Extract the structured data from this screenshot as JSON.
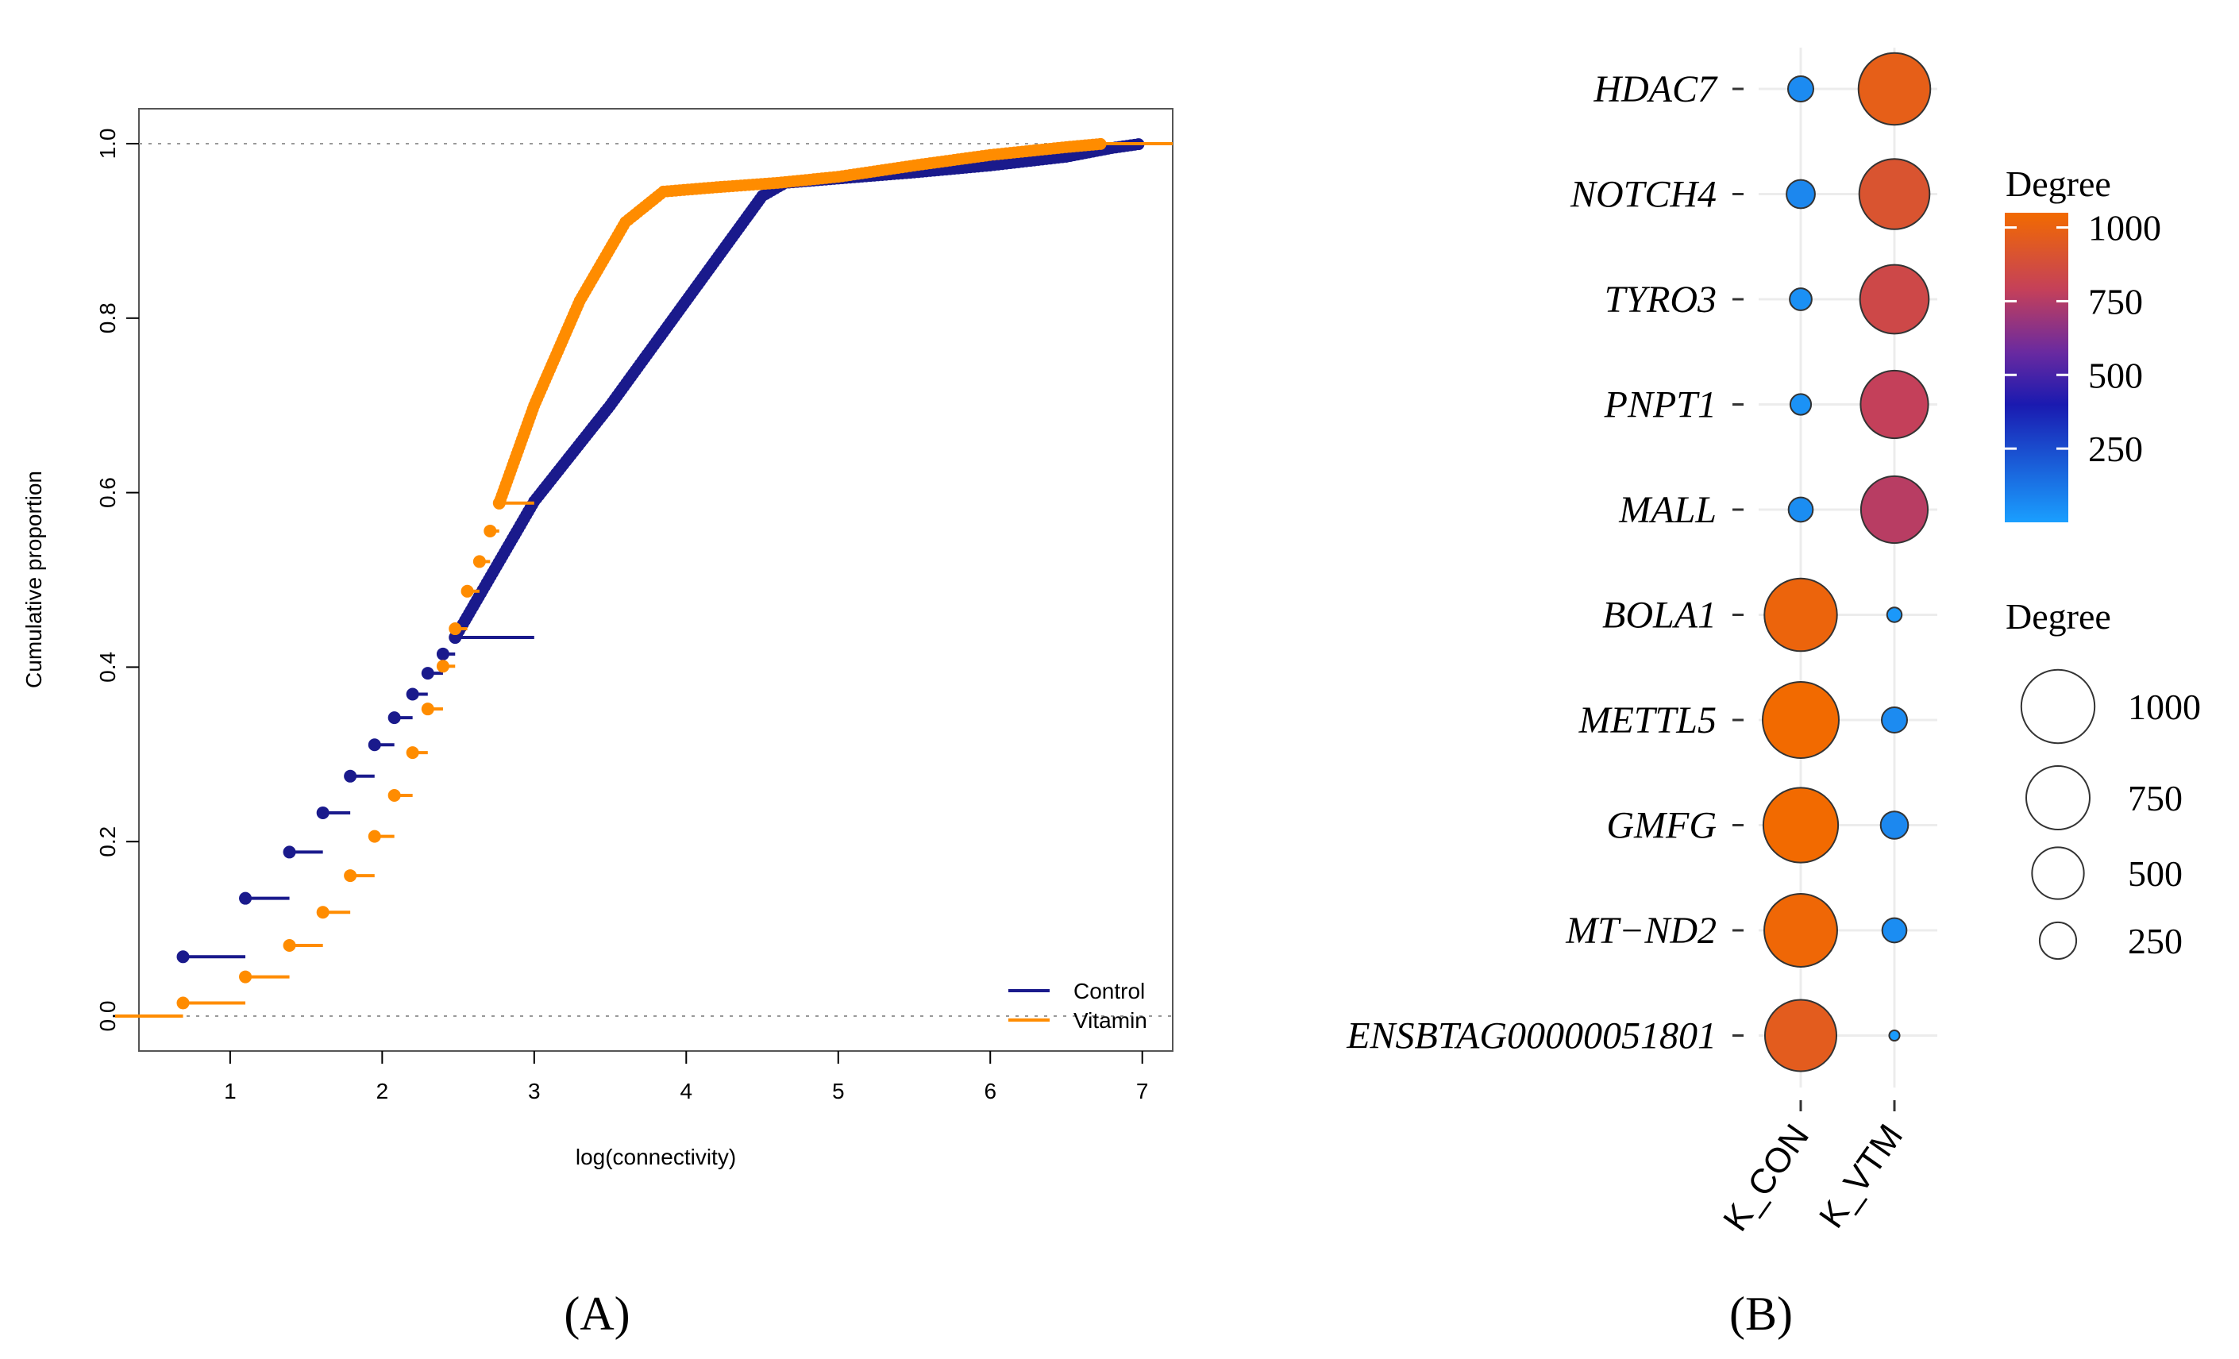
{
  "chart_data": [
    {
      "panel": "A",
      "type": "scatter",
      "xlabel": "log(connectivity)",
      "ylabel": "Cumulative proportion",
      "xlim": [
        0.4,
        7.2
      ],
      "ylim": [
        -0.04,
        1.04
      ],
      "x_ticks": [
        1,
        2,
        3,
        4,
        5,
        6,
        7
      ],
      "y_ticks": [
        0.0,
        0.2,
        0.4,
        0.6,
        0.8,
        1.0
      ],
      "y_tick_labels": [
        "0.0",
        "0.2",
        "0.4",
        "0.6",
        "0.8",
        "1.0"
      ],
      "reference_lines_y": [
        0.0,
        1.0
      ],
      "legend": {
        "position": "bottom-right",
        "entries": [
          "Control",
          "Vitamin"
        ]
      },
      "series": [
        {
          "name": "Control",
          "color": "#1a1a8c",
          "step_points": [
            {
              "x": 0.69,
              "y": 0.068
            },
            {
              "x": 1.1,
              "y": 0.135
            },
            {
              "x": 1.39,
              "y": 0.188
            },
            {
              "x": 1.61,
              "y": 0.233
            },
            {
              "x": 1.79,
              "y": 0.275
            },
            {
              "x": 1.95,
              "y": 0.311
            },
            {
              "x": 2.08,
              "y": 0.342
            },
            {
              "x": 2.2,
              "y": 0.369
            },
            {
              "x": 2.3,
              "y": 0.393
            },
            {
              "x": 2.4,
              "y": 0.415
            },
            {
              "x": 2.48,
              "y": 0.434
            }
          ],
          "curve": [
            {
              "x": 2.48,
              "y": 0.434
            },
            {
              "x": 3.0,
              "y": 0.59
            },
            {
              "x": 3.5,
              "y": 0.7
            },
            {
              "x": 4.0,
              "y": 0.82
            },
            {
              "x": 4.5,
              "y": 0.94
            },
            {
              "x": 4.65,
              "y": 0.955
            },
            {
              "x": 5.0,
              "y": 0.96
            },
            {
              "x": 5.5,
              "y": 0.967
            },
            {
              "x": 6.0,
              "y": 0.975
            },
            {
              "x": 6.5,
              "y": 0.985
            },
            {
              "x": 6.8,
              "y": 0.995
            },
            {
              "x": 7.0,
              "y": 1.0
            }
          ]
        },
        {
          "name": "Vitamin",
          "color": "#ff8c00",
          "step_points": [
            {
              "x": 0.69,
              "y": 0.015
            },
            {
              "x": 1.1,
              "y": 0.045
            },
            {
              "x": 1.39,
              "y": 0.081
            },
            {
              "x": 1.61,
              "y": 0.119
            },
            {
              "x": 1.79,
              "y": 0.161
            },
            {
              "x": 1.95,
              "y": 0.206
            },
            {
              "x": 2.08,
              "y": 0.253
            },
            {
              "x": 2.2,
              "y": 0.302
            },
            {
              "x": 2.3,
              "y": 0.352
            },
            {
              "x": 2.4,
              "y": 0.401
            },
            {
              "x": 2.48,
              "y": 0.444
            },
            {
              "x": 2.56,
              "y": 0.487
            },
            {
              "x": 2.64,
              "y": 0.521
            },
            {
              "x": 2.71,
              "y": 0.556
            },
            {
              "x": 2.77,
              "y": 0.588
            }
          ],
          "curve": [
            {
              "x": 2.77,
              "y": 0.588
            },
            {
              "x": 3.0,
              "y": 0.7
            },
            {
              "x": 3.3,
              "y": 0.82
            },
            {
              "x": 3.6,
              "y": 0.91
            },
            {
              "x": 3.85,
              "y": 0.945
            },
            {
              "x": 4.2,
              "y": 0.95
            },
            {
              "x": 4.6,
              "y": 0.955
            },
            {
              "x": 5.0,
              "y": 0.962
            },
            {
              "x": 5.5,
              "y": 0.975
            },
            {
              "x": 6.0,
              "y": 0.987
            },
            {
              "x": 6.5,
              "y": 0.996
            },
            {
              "x": 6.75,
              "y": 1.0
            }
          ]
        }
      ]
    },
    {
      "panel": "B",
      "type": "scatter",
      "subtype": "bubble",
      "categories_y": [
        "HDAC7",
        "NOTCH4",
        "TYRO3",
        "PNPT1",
        "MALL",
        "BOLA1",
        "METTL5",
        "GMFG",
        "MT−ND2",
        "ENSBTAG00000051801"
      ],
      "categories_x": [
        "K_CON",
        "K_VTM"
      ],
      "series": [
        {
          "name": "K_CON",
          "degree": [
            120,
            150,
            90,
            80,
            110,
            980,
            1080,
            1040,
            990,
            950
          ]
        },
        {
          "name": "K_VTM",
          "degree": [
            960,
            920,
            880,
            850,
            830,
            40,
            120,
            140,
            110,
            20
          ]
        }
      ],
      "legend_color": {
        "title": "Degree",
        "ticks": [
          "1000",
          "750",
          "500",
          "250"
        ],
        "range": [
          0,
          1050
        ]
      },
      "legend_size": {
        "title": "Degree",
        "ticks": [
          "1000",
          "750",
          "500",
          "250"
        ]
      },
      "colors": {
        "low": "#1e90ff",
        "mid_low": "#1a1ab0",
        "mid": "#7a2090",
        "mid_high": "#c44060",
        "high": "#f26a00"
      }
    }
  ],
  "panel_labels": {
    "a": "(A)",
    "b": "(B)"
  }
}
